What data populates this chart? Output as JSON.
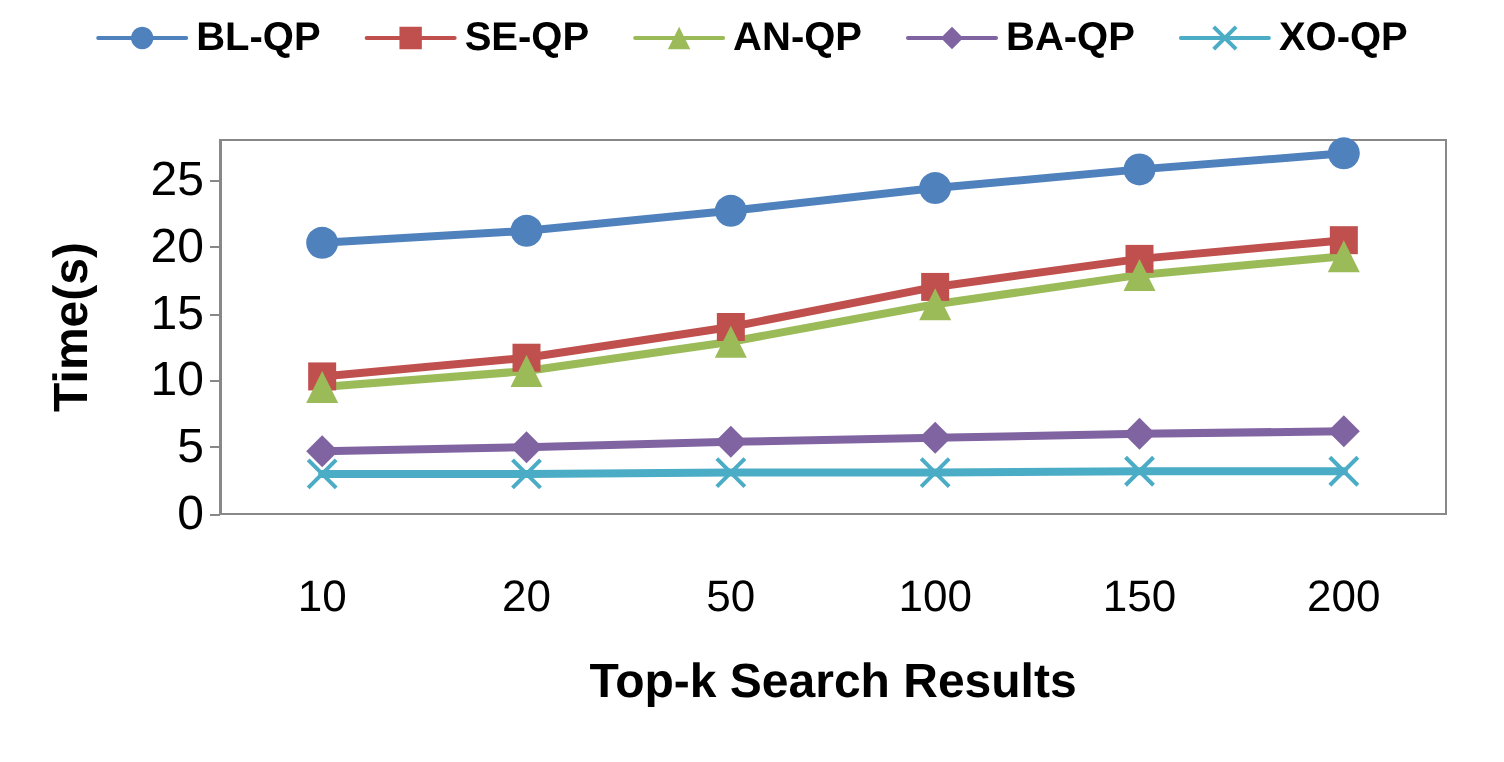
{
  "chart_data": {
    "type": "line",
    "xlabel": "Top-k Search Results",
    "ylabel": "Time(s)",
    "categories": [
      "10",
      "20",
      "50",
      "100",
      "150",
      "200"
    ],
    "series": [
      {
        "name": "BL-QP",
        "color": "#4f81bd",
        "marker": "circle",
        "values": [
          20.3,
          21.2,
          22.7,
          24.4,
          25.8,
          27.0
        ]
      },
      {
        "name": "SE-QP",
        "color": "#c0504d",
        "marker": "square",
        "values": [
          10.3,
          11.7,
          14.0,
          17.0,
          19.1,
          20.5
        ]
      },
      {
        "name": "AN-QP",
        "color": "#9bbb59",
        "marker": "triangle",
        "values": [
          9.5,
          10.7,
          12.9,
          15.7,
          17.9,
          19.3
        ]
      },
      {
        "name": "BA-QP",
        "color": "#8064a2",
        "marker": "diamond",
        "values": [
          4.7,
          5.0,
          5.4,
          5.7,
          6.0,
          6.2
        ]
      },
      {
        "name": "XO-QP",
        "color": "#4bacc6",
        "marker": "cross",
        "values": [
          3.0,
          3.0,
          3.1,
          3.1,
          3.2,
          3.2
        ]
      }
    ],
    "ylim": [
      0,
      28
    ],
    "yticks": [
      0,
      5,
      10,
      15,
      20,
      25
    ],
    "grid": false,
    "legend": "top",
    "line_style": "solid"
  }
}
